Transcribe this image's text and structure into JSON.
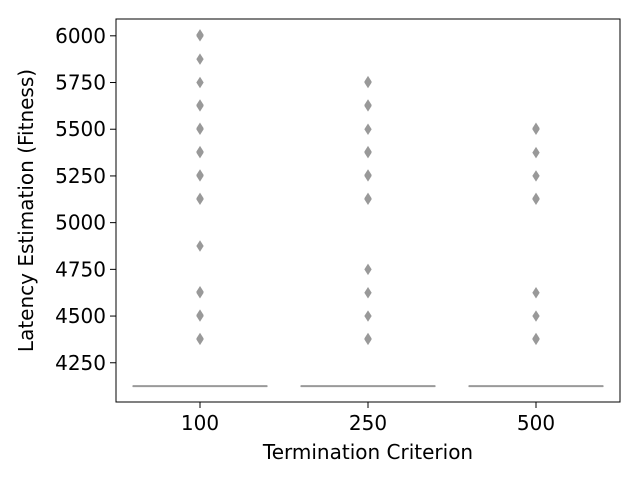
{
  "chart_data": {
    "type": "boxplot",
    "xlabel": "Termination Criterion",
    "ylabel": "Latency Estimation (Fitness)",
    "categories": [
      "100",
      "250",
      "500"
    ],
    "ylim": [
      4040,
      6090
    ],
    "yticks": [
      4250,
      4500,
      4750,
      5000,
      5250,
      5500,
      5750,
      6000
    ],
    "grid": false,
    "box_color": "#999999",
    "series": [
      {
        "category": "100",
        "median": 4125,
        "q1": 4125,
        "q3": 4125,
        "whisker_low": 4125,
        "whisker_high": 4125,
        "outliers": [
          4375,
          4380,
          4500,
          4505,
          4625,
          4630,
          4875,
          5125,
          5130,
          5250,
          5255,
          5375,
          5380,
          5500,
          5505,
          5625,
          5630,
          5750,
          5875,
          6000,
          6005
        ]
      },
      {
        "category": "250",
        "median": 4125,
        "q1": 4125,
        "q3": 4125,
        "whisker_low": 4125,
        "whisker_high": 4125,
        "outliers": [
          4375,
          4380,
          4500,
          4625,
          4750,
          5125,
          5130,
          5250,
          5255,
          5375,
          5380,
          5500,
          5625,
          5630,
          5750,
          5755
        ]
      },
      {
        "category": "500",
        "median": 4125,
        "q1": 4125,
        "q3": 4125,
        "whisker_low": 4125,
        "whisker_high": 4125,
        "outliers": [
          4375,
          4380,
          4500,
          4625,
          5125,
          5130,
          5250,
          5375,
          5500,
          5505
        ]
      }
    ]
  }
}
